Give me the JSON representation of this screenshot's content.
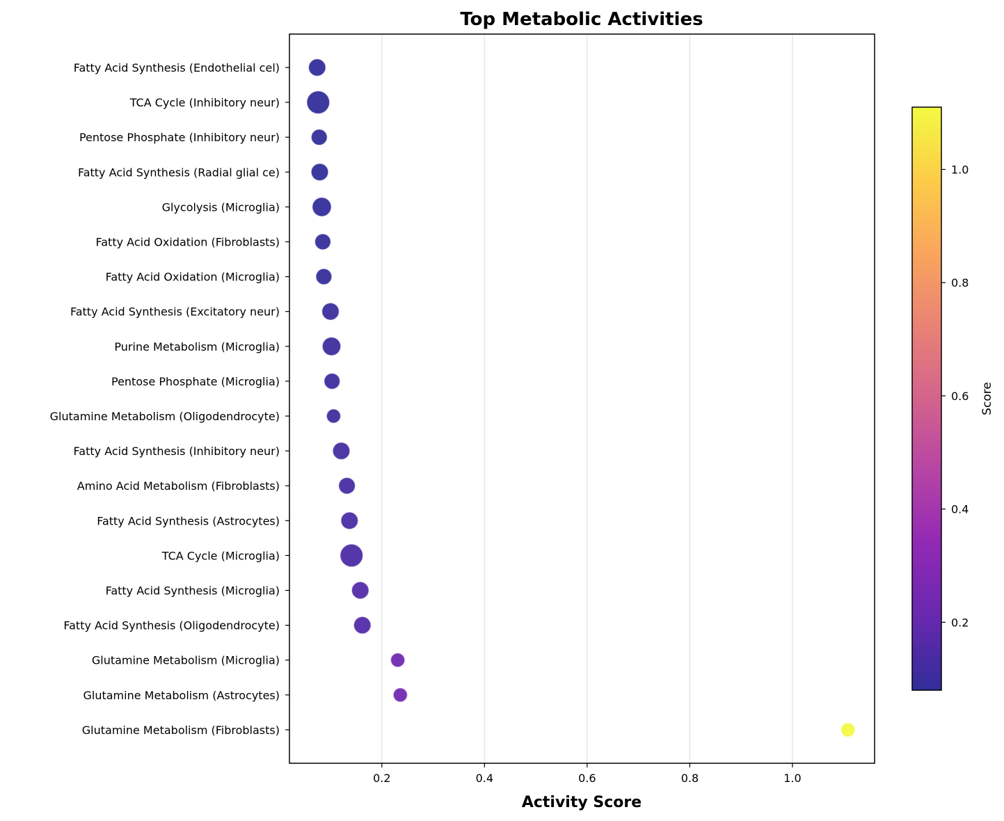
{
  "chart_data": {
    "type": "scatter",
    "title": "Top Metabolic Activities",
    "xlabel": "Activity Score",
    "ylabel": "",
    "xlim": [
      0.02,
      1.16
    ],
    "xticks": [
      0.2,
      0.4,
      0.6,
      0.8,
      1.0
    ],
    "xtick_labels": [
      "0.2",
      "0.4",
      "0.6",
      "0.8",
      "1.0"
    ],
    "grid": "vertical",
    "colormap": "plasma",
    "colorbar": {
      "label": "Score",
      "range": [
        0.08,
        1.11
      ],
      "ticks": [
        0.2,
        0.4,
        0.6,
        0.8,
        1.0
      ],
      "tick_labels": [
        "0.2",
        "0.4",
        "0.6",
        "0.8",
        "1.0"
      ]
    },
    "points": [
      {
        "label": "Fatty Acid Synthesis (Endothelial cel)",
        "x": 0.074,
        "size": 0.55
      },
      {
        "label": "TCA Cycle (Inhibitory neur)",
        "x": 0.076,
        "size": 1.0
      },
      {
        "label": "Pentose Phosphate (Inhibitory neur)",
        "x": 0.078,
        "size": 0.45
      },
      {
        "label": "Fatty Acid Synthesis (Radial glial ce)",
        "x": 0.079,
        "size": 0.55
      },
      {
        "label": "Glycolysis (Microglia)",
        "x": 0.083,
        "size": 0.7
      },
      {
        "label": "Fatty Acid Oxidation (Fibroblasts)",
        "x": 0.085,
        "size": 0.45
      },
      {
        "label": "Fatty Acid Oxidation (Microglia)",
        "x": 0.087,
        "size": 0.45
      },
      {
        "label": "Fatty Acid Synthesis (Excitatory neur)",
        "x": 0.1,
        "size": 0.55
      },
      {
        "label": "Purine Metabolism (Microglia)",
        "x": 0.102,
        "size": 0.65
      },
      {
        "label": "Pentose Phosphate (Microglia)",
        "x": 0.103,
        "size": 0.45
      },
      {
        "label": "Glutamine Metabolism (Oligodendrocyte)",
        "x": 0.106,
        "size": 0.3
      },
      {
        "label": "Fatty Acid Synthesis (Inhibitory neur)",
        "x": 0.121,
        "size": 0.55
      },
      {
        "label": "Amino Acid Metabolism (Fibroblasts)",
        "x": 0.132,
        "size": 0.5
      },
      {
        "label": "Fatty Acid Synthesis (Astrocytes)",
        "x": 0.137,
        "size": 0.55
      },
      {
        "label": "TCA Cycle (Microglia)",
        "x": 0.141,
        "size": 1.0
      },
      {
        "label": "Fatty Acid Synthesis (Microglia)",
        "x": 0.158,
        "size": 0.55
      },
      {
        "label": "Fatty Acid Synthesis (Oligodendrocyte)",
        "x": 0.162,
        "size": 0.55
      },
      {
        "label": "Glutamine Metabolism (Microglia)",
        "x": 0.231,
        "size": 0.3
      },
      {
        "label": "Glutamine Metabolism (Astrocytes)",
        "x": 0.236,
        "size": 0.3
      },
      {
        "label": "Glutamine Metabolism (Fibroblasts)",
        "x": 1.108,
        "size": 0.3
      }
    ]
  }
}
